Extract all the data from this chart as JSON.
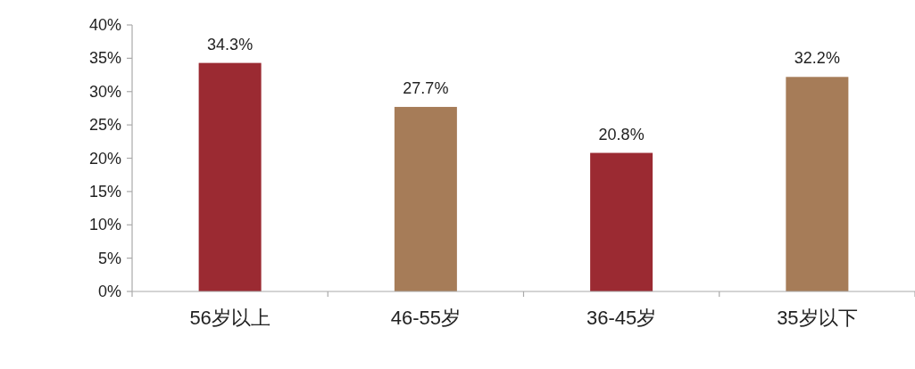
{
  "chart_data": {
    "type": "bar",
    "categories": [
      "56岁以上",
      "46-55岁",
      "36-45岁",
      "35岁以下"
    ],
    "values": [
      34.3,
      27.7,
      20.8,
      32.2
    ],
    "colors": [
      "#9b2a32",
      "#a67c58",
      "#9b2a32",
      "#a67c58"
    ],
    "value_labels": [
      "34.3%",
      "27.7%",
      "20.8%",
      "32.2%"
    ],
    "ylim": [
      0,
      40
    ],
    "yticks": [
      {
        "value": 0,
        "label": "0%"
      },
      {
        "value": 5,
        "label": "5%"
      },
      {
        "value": 10,
        "label": "10%"
      },
      {
        "value": 15,
        "label": "15%"
      },
      {
        "value": 20,
        "label": "20%"
      },
      {
        "value": 25,
        "label": "25%"
      },
      {
        "value": 30,
        "label": "30%"
      },
      {
        "value": 35,
        "label": "35%"
      },
      {
        "value": 40,
        "label": "40%"
      }
    ]
  }
}
